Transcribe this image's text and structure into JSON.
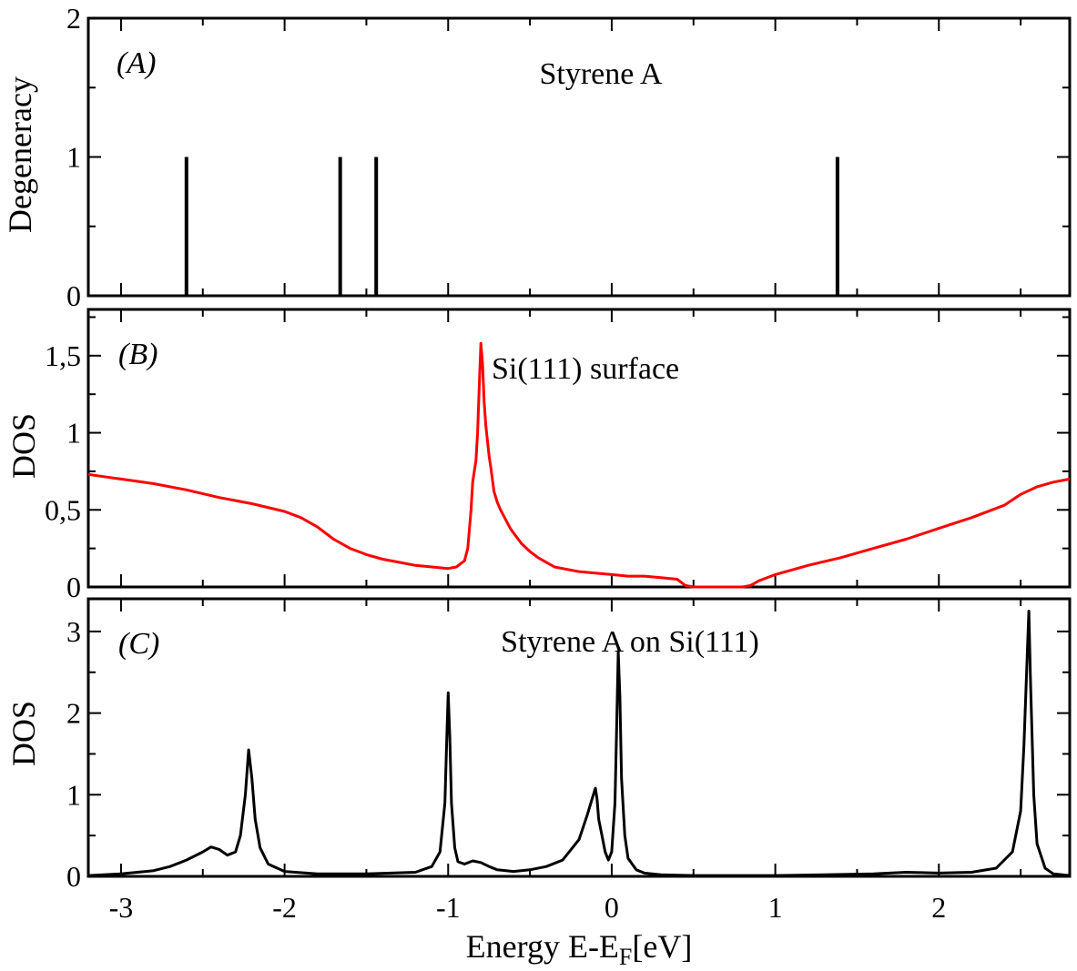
{
  "chart_data": [
    {
      "type": "bar",
      "panel_letter": "(A)",
      "title": "Styrene A",
      "ylabel": "Degeneracy",
      "xlabel": "",
      "xlim": [
        -3.2,
        2.8
      ],
      "ylim": [
        0,
        2
      ],
      "y_ticks": [
        0,
        1,
        2
      ],
      "y_tick_labels": [
        "0",
        "1",
        "2"
      ],
      "x_ticks": [
        -3,
        -2,
        -1,
        0,
        1,
        2
      ],
      "bars": [
        {
          "x": -2.6,
          "value": 1
        },
        {
          "x": -1.66,
          "value": 1
        },
        {
          "x": -1.44,
          "value": 1
        },
        {
          "x": 1.38,
          "value": 1
        }
      ],
      "color": "#000000"
    },
    {
      "type": "line",
      "panel_letter": "(B)",
      "title": "Si(111) surface",
      "ylabel": "DOS",
      "xlabel": "",
      "xlim": [
        -3.2,
        2.8
      ],
      "ylim": [
        0,
        1.8
      ],
      "y_ticks": [
        0,
        0.5,
        1,
        1.5
      ],
      "y_tick_labels": [
        "0",
        "0,5",
        "1",
        "1,5"
      ],
      "x_ticks": [
        -3,
        -2,
        -1,
        0,
        1,
        2
      ],
      "series": [
        {
          "name": "Si(111) surface",
          "color": "#ff0000",
          "x": [
            -3.2,
            -3.0,
            -2.8,
            -2.6,
            -2.4,
            -2.2,
            -2.0,
            -1.9,
            -1.8,
            -1.7,
            -1.6,
            -1.5,
            -1.4,
            -1.3,
            -1.2,
            -1.1,
            -1.0,
            -0.95,
            -0.9,
            -0.88,
            -0.86,
            -0.85,
            -0.84,
            -0.83,
            -0.82,
            -0.81,
            -0.8,
            -0.79,
            -0.78,
            -0.77,
            -0.76,
            -0.75,
            -0.74,
            -0.72,
            -0.7,
            -0.68,
            -0.66,
            -0.64,
            -0.62,
            -0.6,
            -0.55,
            -0.5,
            -0.45,
            -0.4,
            -0.35,
            -0.3,
            -0.2,
            -0.1,
            0.0,
            0.1,
            0.2,
            0.3,
            0.4,
            0.45,
            0.5,
            0.6,
            0.7,
            0.8,
            0.85,
            0.9,
            1.0,
            1.2,
            1.4,
            1.6,
            1.8,
            2.0,
            2.2,
            2.4,
            2.5,
            2.6,
            2.7,
            2.8
          ],
          "values": [
            0.73,
            0.7,
            0.67,
            0.63,
            0.58,
            0.54,
            0.49,
            0.45,
            0.39,
            0.31,
            0.25,
            0.21,
            0.18,
            0.16,
            0.14,
            0.13,
            0.12,
            0.13,
            0.17,
            0.25,
            0.5,
            0.68,
            0.75,
            0.82,
            1.0,
            1.3,
            1.58,
            1.45,
            1.2,
            1.05,
            0.95,
            0.85,
            0.78,
            0.62,
            0.55,
            0.5,
            0.46,
            0.42,
            0.38,
            0.35,
            0.28,
            0.23,
            0.19,
            0.16,
            0.13,
            0.12,
            0.1,
            0.09,
            0.08,
            0.07,
            0.07,
            0.06,
            0.05,
            0.01,
            0.0,
            0.0,
            0.0,
            0.0,
            0.01,
            0.04,
            0.08,
            0.14,
            0.19,
            0.25,
            0.31,
            0.38,
            0.45,
            0.53,
            0.6,
            0.65,
            0.68,
            0.7
          ]
        }
      ]
    },
    {
      "type": "line",
      "panel_letter": "(C)",
      "title": "Styrene A on Si(111)",
      "ylabel": "DOS",
      "xlabel": "Energy E-E",
      "xlabel_sub": "F",
      "xlabel_unit": "[eV]",
      "xlim": [
        -3.2,
        2.8
      ],
      "ylim": [
        0,
        3.4
      ],
      "y_ticks": [
        0,
        1,
        2,
        3
      ],
      "y_tick_labels": [
        "0",
        "1",
        "2",
        "3"
      ],
      "x_ticks": [
        -3,
        -2,
        -1,
        0,
        1,
        2
      ],
      "x_tick_labels": [
        "-3",
        "-2",
        "-1",
        "0",
        "1",
        "2"
      ],
      "series": [
        {
          "name": "Styrene A on Si(111)",
          "color": "#000000",
          "x": [
            -3.2,
            -3.0,
            -2.8,
            -2.7,
            -2.6,
            -2.5,
            -2.45,
            -2.4,
            -2.35,
            -2.3,
            -2.27,
            -2.24,
            -2.22,
            -2.2,
            -2.18,
            -2.15,
            -2.1,
            -2.0,
            -1.8,
            -1.5,
            -1.2,
            -1.1,
            -1.05,
            -1.02,
            -1.01,
            -1.0,
            -0.99,
            -0.98,
            -0.96,
            -0.94,
            -0.9,
            -0.85,
            -0.8,
            -0.75,
            -0.7,
            -0.6,
            -0.5,
            -0.4,
            -0.3,
            -0.2,
            -0.15,
            -0.12,
            -0.1,
            -0.09,
            -0.08,
            -0.06,
            -0.04,
            -0.02,
            0.0,
            0.02,
            0.03,
            0.04,
            0.05,
            0.06,
            0.08,
            0.1,
            0.15,
            0.2,
            0.3,
            0.5,
            0.8,
            1.0,
            1.3,
            1.6,
            1.8,
            2.0,
            2.2,
            2.35,
            2.45,
            2.5,
            2.52,
            2.54,
            2.55,
            2.56,
            2.58,
            2.6,
            2.65,
            2.7,
            2.8
          ],
          "values": [
            0.01,
            0.03,
            0.07,
            0.12,
            0.2,
            0.3,
            0.36,
            0.33,
            0.26,
            0.3,
            0.5,
            1.0,
            1.55,
            1.2,
            0.7,
            0.35,
            0.15,
            0.06,
            0.03,
            0.03,
            0.05,
            0.12,
            0.3,
            0.9,
            1.6,
            2.25,
            1.7,
            0.9,
            0.35,
            0.18,
            0.15,
            0.19,
            0.17,
            0.12,
            0.08,
            0.06,
            0.08,
            0.12,
            0.2,
            0.45,
            0.75,
            0.95,
            1.08,
            0.95,
            0.7,
            0.5,
            0.3,
            0.2,
            0.3,
            0.9,
            1.8,
            2.75,
            2.2,
            1.2,
            0.5,
            0.22,
            0.08,
            0.04,
            0.02,
            0.01,
            0.01,
            0.01,
            0.02,
            0.03,
            0.05,
            0.04,
            0.05,
            0.1,
            0.3,
            0.8,
            1.6,
            2.7,
            3.25,
            2.4,
            1.0,
            0.4,
            0.1,
            0.03,
            0.01
          ]
        }
      ]
    }
  ]
}
